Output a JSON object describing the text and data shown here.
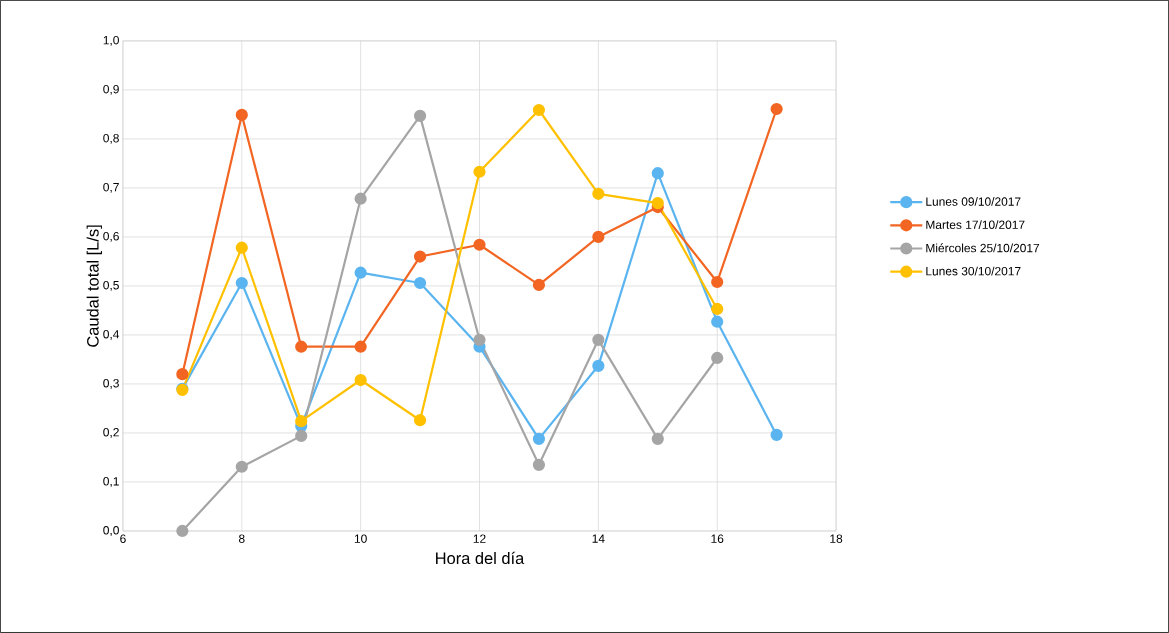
{
  "chart_data": {
    "type": "line",
    "xlabel": "Hora del día",
    "ylabel": "Caudal total [L/s]",
    "x": [
      7,
      8,
      9,
      10,
      11,
      12,
      13,
      14,
      15,
      16,
      17
    ],
    "series": [
      {
        "name": "Lunes 09/10/2017",
        "color": "#5ab4f0",
        "values": [
          0.29,
          0.506,
          0.214,
          0.527,
          0.506,
          0.376,
          0.188,
          0.337,
          0.73,
          0.427,
          0.196
        ]
      },
      {
        "name": "Martes 17/10/2017",
        "color": "#f26522",
        "values": [
          0.32,
          0.849,
          0.376,
          0.376,
          0.56,
          0.584,
          0.502,
          0.6,
          0.661,
          0.508,
          0.861
        ]
      },
      {
        "name": "Miércoles 25/10/2017",
        "color": "#a5a5a5",
        "values": [
          0.0,
          0.131,
          0.194,
          0.678,
          0.847,
          0.39,
          0.135,
          0.39,
          0.188,
          0.353,
          null
        ]
      },
      {
        "name": "Lunes 30/10/2017",
        "color": "#ffc000",
        "values": [
          0.288,
          0.578,
          0.224,
          0.308,
          0.226,
          0.733,
          0.859,
          0.688,
          0.669,
          0.453,
          null
        ]
      }
    ],
    "xlim": [
      6,
      18
    ],
    "xticks": [
      6,
      8,
      10,
      12,
      14,
      16,
      18
    ],
    "ylim": [
      0,
      1
    ],
    "yticks": [
      {
        "value": 0,
        "label": "0,0"
      },
      {
        "value": 0.1,
        "label": "0,1"
      },
      {
        "value": 0.2,
        "label": "0,2"
      },
      {
        "value": 0.3,
        "label": "0,3"
      },
      {
        "value": 0.4,
        "label": "0,4"
      },
      {
        "value": 0.5,
        "label": "0,5"
      },
      {
        "value": 0.6,
        "label": "0,6"
      },
      {
        "value": 0.7,
        "label": "0,7"
      },
      {
        "value": 0.8,
        "label": "0,8"
      },
      {
        "value": 0.9,
        "label": "0,9"
      },
      {
        "value": 1,
        "label": "1,0"
      }
    ],
    "grid": true,
    "legend": "right",
    "marker": "circle",
    "line_style": "solid"
  }
}
